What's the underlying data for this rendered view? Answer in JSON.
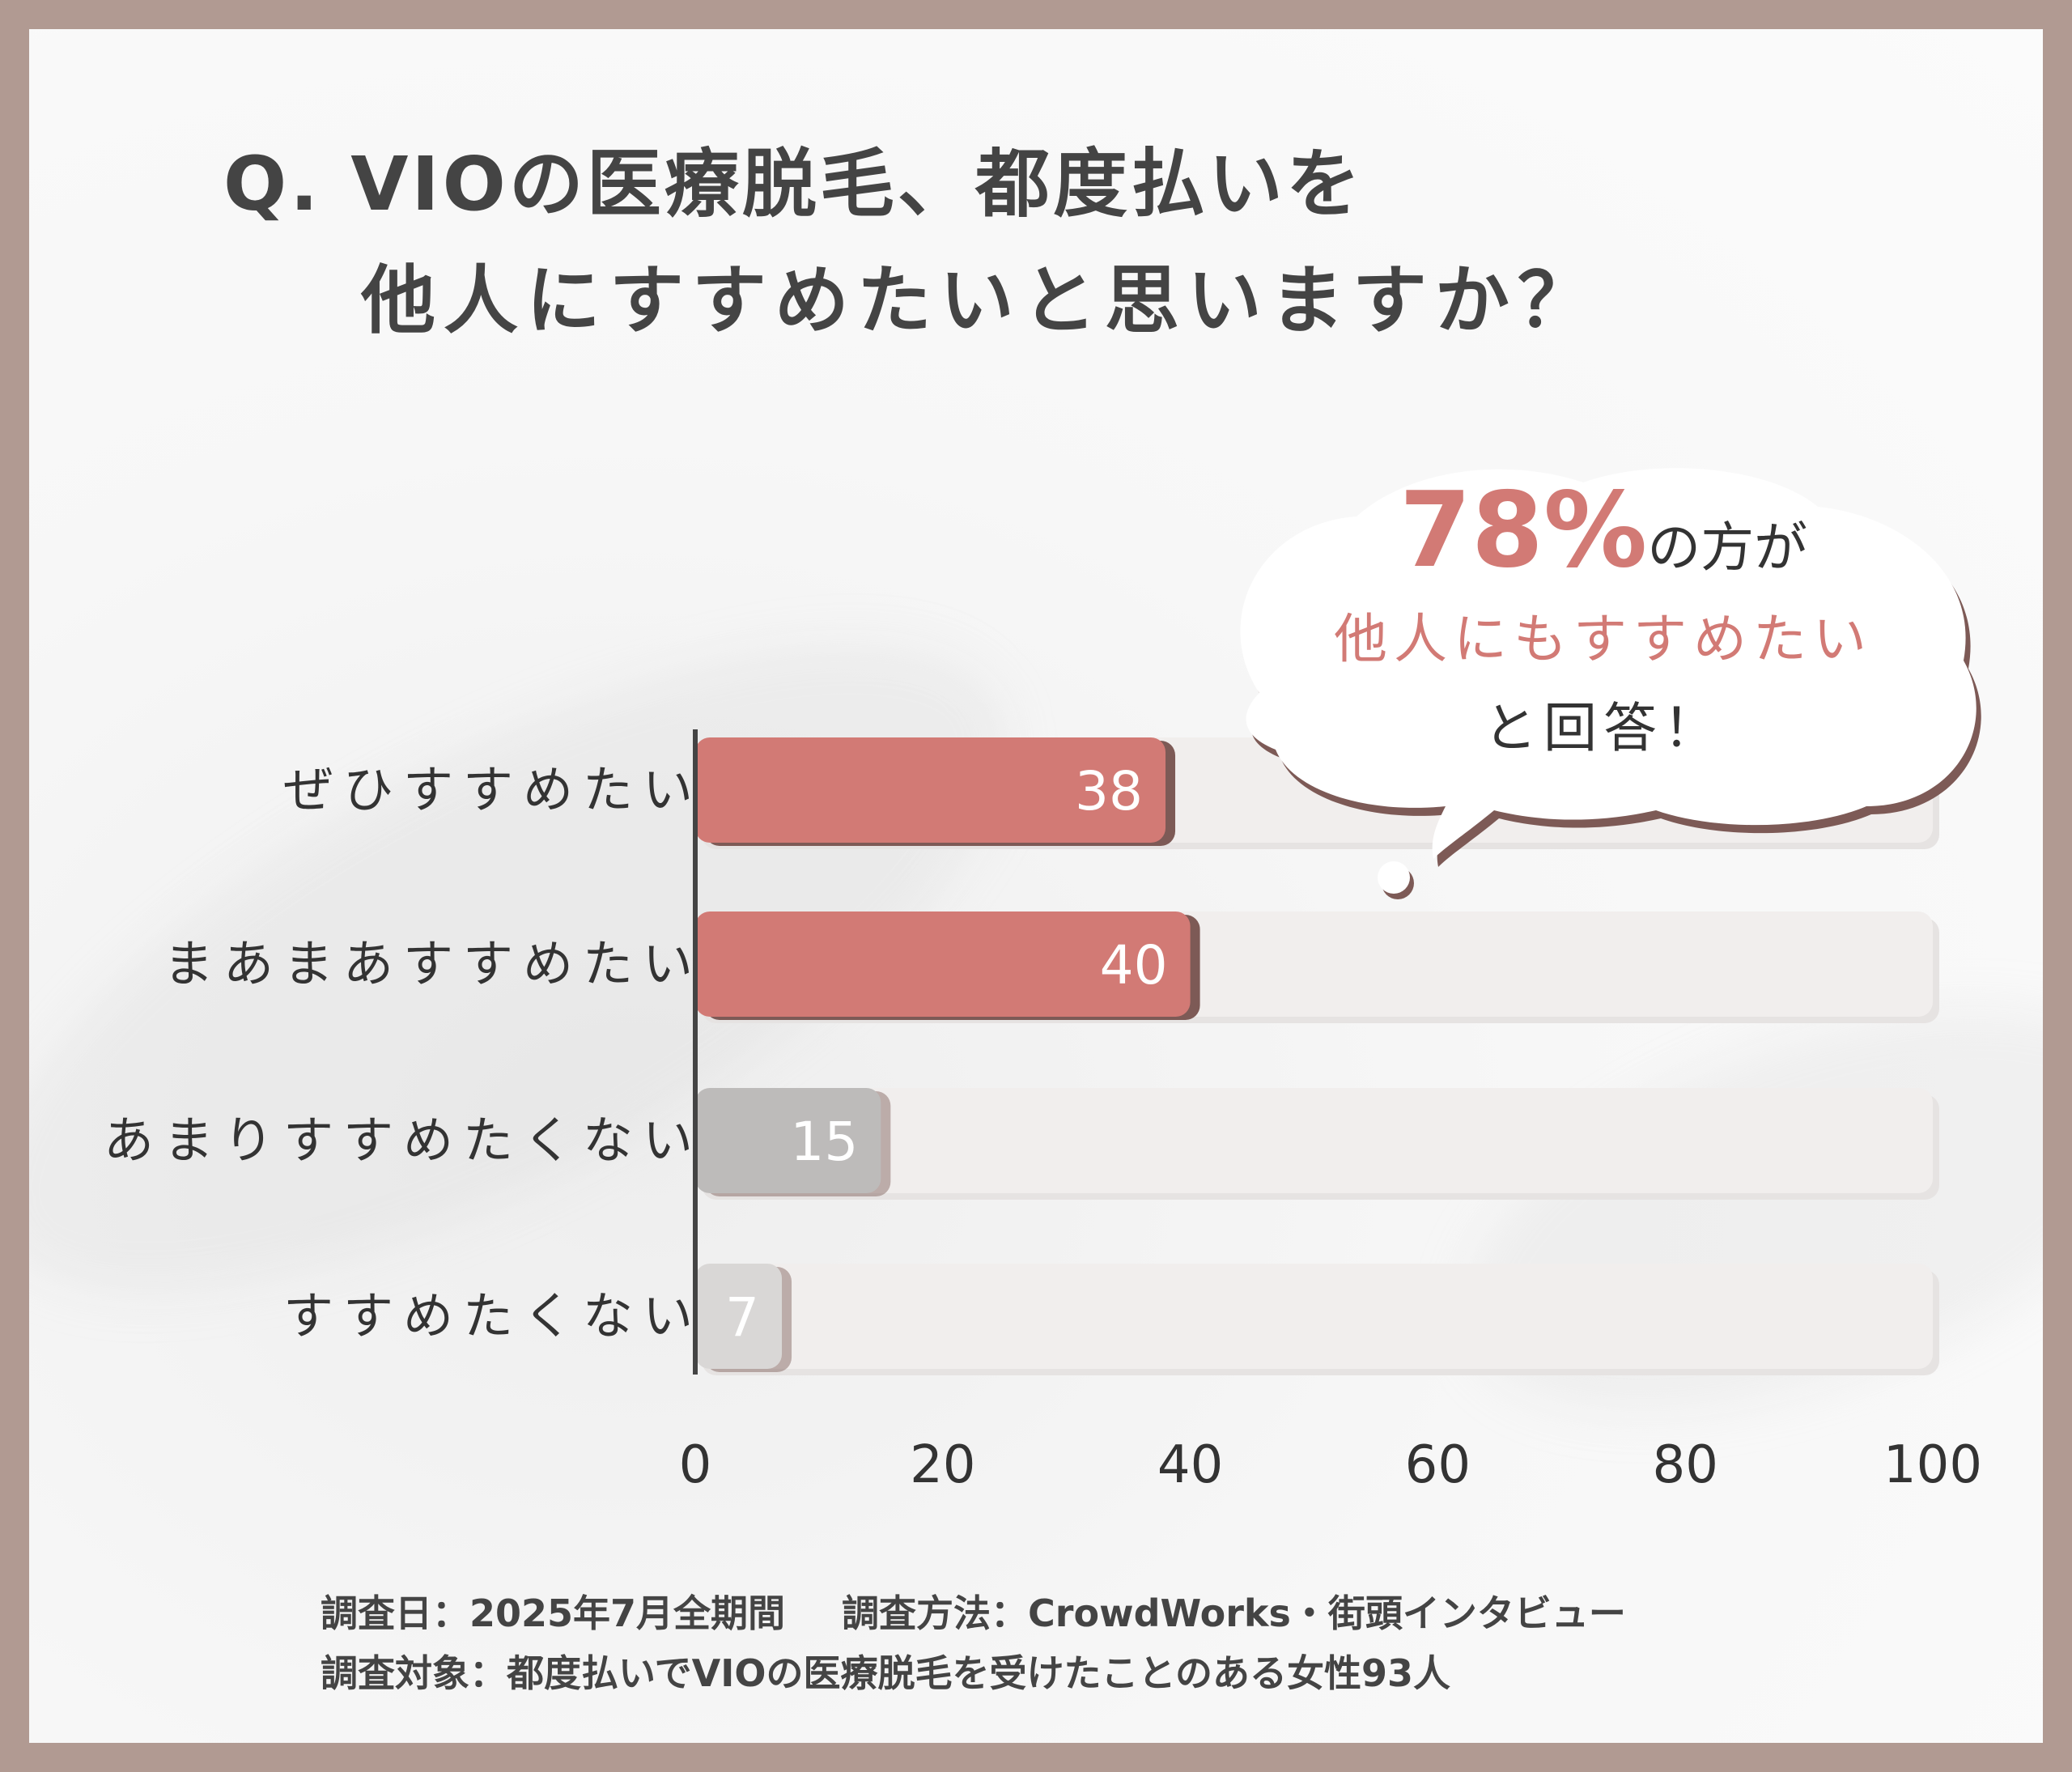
{
  "title": {
    "line1": "Q. VIOの医療脱毛、都度払いを",
    "line2": "他人にすすめたいと思いますか？"
  },
  "callout": {
    "percent": "78%",
    "after_percent": "の方が",
    "line2": "他人にもすすめたい",
    "line3": "と回答！"
  },
  "footer": {
    "date": "調査日：2025年7月全期間",
    "method": "調査方法：CrowdWorks・街頭インタビュー",
    "target": "調査対象：都度払いでVIOの医療脱毛を受けたことのある女性93人"
  },
  "colors": {
    "accent": "#d27a75",
    "accent_shadow": "#7d5a56",
    "gray_bar": "#bdbbba",
    "light_bar": "#d9d7d6",
    "track": "#f1eeed",
    "frame": "#b19a92"
  },
  "chart_data": {
    "type": "bar",
    "orientation": "horizontal",
    "categories": [
      "ぜひすすめたい",
      "まあまあすすめたい",
      "あまりすすめたくない",
      "すすめたくない"
    ],
    "values": [
      38,
      40,
      15,
      7
    ],
    "xlim": [
      0,
      100
    ],
    "xticks": [
      0,
      20,
      40,
      60,
      80,
      100
    ],
    "title": "Q. VIOの医療脱毛、都度払いを 他人にすすめたいと思いますか？",
    "xlabel": "",
    "ylabel": "",
    "grid": false
  }
}
